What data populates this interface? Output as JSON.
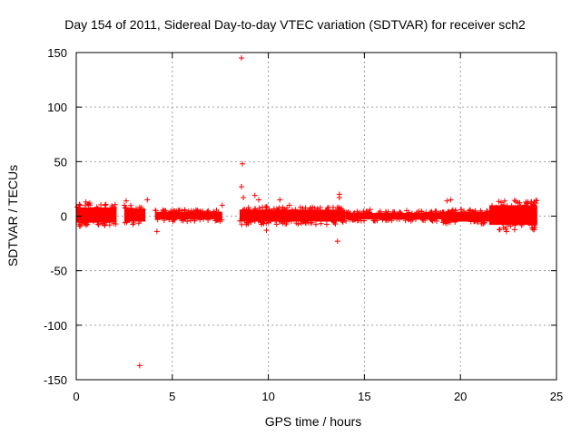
{
  "chart_data": {
    "type": "scatter",
    "title": "Day 154 of 2011, Sidereal Day-to-day VTEC variation (SDTVAR) for receiver sch2",
    "xlabel": "GPS time / hours",
    "ylabel": "SDTVAR / TECUs",
    "xlim": [
      0,
      25
    ],
    "ylim": [
      -150,
      150
    ],
    "xticks": [
      "0",
      "5",
      "10",
      "15",
      "20",
      "25"
    ],
    "yticks": [
      "150",
      "100",
      "50",
      "0",
      "-50",
      "-100",
      "-150"
    ],
    "grid": true,
    "marker": "+",
    "series_color": "#ff0000",
    "series": [
      {
        "bands": [
          {
            "x": [
              0.0,
              2.1
            ],
            "y_low": -6,
            "y_high": 8
          },
          {
            "x": [
              2.5,
              3.6
            ],
            "y_low": -5,
            "y_high": 7
          },
          {
            "x": [
              4.1,
              7.6
            ],
            "y_low": -3,
            "y_high": 4
          },
          {
            "x": [
              8.5,
              14.0
            ],
            "y_low": -5,
            "y_high": 6
          },
          {
            "x": [
              14.0,
              19.0
            ],
            "y_low": -3,
            "y_high": 3
          },
          {
            "x": [
              19.0,
              21.5
            ],
            "y_low": -5,
            "y_high": 4
          },
          {
            "x": [
              21.5,
              24.0
            ],
            "y_low": -8,
            "y_high": 10
          }
        ],
        "points": [
          {
            "x": 0.2,
            "y": 10
          },
          {
            "x": 0.5,
            "y": 13
          },
          {
            "x": 0.7,
            "y": 12
          },
          {
            "x": 1.5,
            "y": 10
          },
          {
            "x": 1.9,
            "y": 8
          },
          {
            "x": 2.6,
            "y": 14
          },
          {
            "x": 3.7,
            "y": 15
          },
          {
            "x": 3.3,
            "y": -137
          },
          {
            "x": 4.2,
            "y": -14
          },
          {
            "x": 7.6,
            "y": 10
          },
          {
            "x": 8.6,
            "y": 145
          },
          {
            "x": 8.65,
            "y": 48
          },
          {
            "x": 8.6,
            "y": 27
          },
          {
            "x": 8.7,
            "y": 17
          },
          {
            "x": 9.3,
            "y": 19
          },
          {
            "x": 9.5,
            "y": 15
          },
          {
            "x": 9.9,
            "y": -13
          },
          {
            "x": 10.6,
            "y": 15
          },
          {
            "x": 11.1,
            "y": 10
          },
          {
            "x": 12.3,
            "y": 8
          },
          {
            "x": 13.7,
            "y": 20
          },
          {
            "x": 13.7,
            "y": 17
          },
          {
            "x": 13.6,
            "y": -23
          },
          {
            "x": 15.3,
            "y": 6
          },
          {
            "x": 17.2,
            "y": 5
          },
          {
            "x": 19.3,
            "y": 14
          },
          {
            "x": 19.5,
            "y": 15
          },
          {
            "x": 22.4,
            "y": -14
          },
          {
            "x": 23.0,
            "y": 12
          },
          {
            "x": 23.5,
            "y": 13
          },
          {
            "x": 23.8,
            "y": 10
          }
        ]
      }
    ]
  }
}
